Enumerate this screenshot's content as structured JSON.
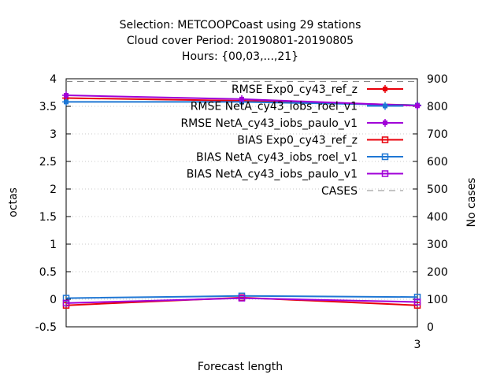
{
  "chart_data": {
    "type": "line",
    "title_lines": [
      "Selection: METCOOPCoast using    29 stations",
      "Cloud cover   Period: 20190801-20190805",
      "Hours: {00,03,...,21}"
    ],
    "xlabel": "Forecast length",
    "ylabel": "octas",
    "y2label": "No cases",
    "x_ticks": [
      "3"
    ],
    "y_ticks": [
      "-0.5",
      "0",
      "0.5",
      "1",
      "1.5",
      "2",
      "2.5",
      "3",
      "3.5",
      "4"
    ],
    "y2_ticks": [
      "0",
      "100",
      "200",
      "300",
      "400",
      "500",
      "600",
      "700",
      "800",
      "900"
    ],
    "ylim": [
      -0.5,
      4
    ],
    "y2lim": [
      0,
      900
    ],
    "grid": true,
    "legend_position": "top-right",
    "x": [
      0,
      1.5,
      3
    ],
    "series": [
      {
        "name": "RMSE Exp0_cy43_ref_z",
        "color": "#e8000b",
        "marker": "plus-filled",
        "axis": "y",
        "values": [
          3.65,
          3.6,
          3.52
        ]
      },
      {
        "name": "RMSE NetA_cy43_iobs_roel_v1",
        "color": "#1f77d4",
        "marker": "plus-filled",
        "axis": "y",
        "values": [
          3.58,
          3.58,
          3.52
        ]
      },
      {
        "name": "RMSE NetA_cy43_iobs_paulo_v1",
        "color": "#a000d8",
        "marker": "plus-filled",
        "axis": "y",
        "values": [
          3.7,
          3.63,
          3.51
        ]
      },
      {
        "name": "BIAS Exp0_cy43_ref_z",
        "color": "#e8000b",
        "marker": "square",
        "axis": "y",
        "values": [
          -0.11,
          0.03,
          -0.11
        ]
      },
      {
        "name": "BIAS NetA_cy43_iobs_roel_v1",
        "color": "#1f77d4",
        "marker": "square",
        "axis": "y",
        "values": [
          0.02,
          0.06,
          0.04
        ]
      },
      {
        "name": "BIAS NetA_cy43_iobs_paulo_v1",
        "color": "#a000d8",
        "marker": "square",
        "axis": "y",
        "values": [
          -0.07,
          0.02,
          -0.05
        ]
      },
      {
        "name": "CASES",
        "color": "#888888",
        "marker": "none",
        "dashed": true,
        "axis": "y2",
        "values": [
          890,
          890,
          890
        ]
      }
    ]
  }
}
